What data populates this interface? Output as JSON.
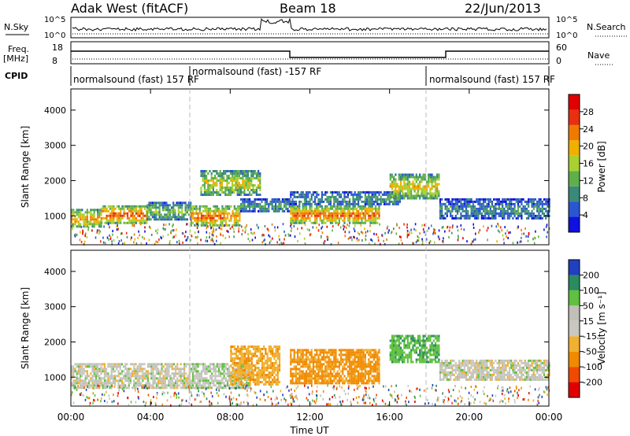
{
  "header": {
    "station": "Adak West (fitACF)",
    "beam": "Beam 18",
    "date": "22/Jun/2013"
  },
  "nsky_panel": {
    "left_label": "N.Sky",
    "right_label": "N.Search",
    "left_ticks": [
      "10^5",
      "10^0"
    ],
    "right_ticks": [
      "10^5",
      "10^0"
    ]
  },
  "freq_panel": {
    "left_label_1": "Freq.",
    "left_label_2": "[MHz]",
    "left_ticks": [
      "18",
      "8"
    ],
    "right_label": "Nave",
    "right_ticks": [
      "60",
      "0"
    ]
  },
  "cpid_panel": {
    "label": "CPID",
    "segments": [
      "normalsound (fast) 157 RF",
      "normalsound (fast) -157 RF",
      "normalsound (fast) 157 RF"
    ]
  },
  "power_panel": {
    "ylabel": "Slant Range [km]",
    "yticks": [
      "4000",
      "3000",
      "2000",
      "1000"
    ],
    "cbar_label": "Power [dB]",
    "cbar_ticks": [
      "28",
      "24",
      "20",
      "16",
      "12",
      "8",
      "4"
    ]
  },
  "velocity_panel": {
    "ylabel": "Slant Range [km]",
    "yticks": [
      "4000",
      "3000",
      "2000",
      "1000"
    ],
    "cbar_label": "Velocity [m s⁻¹]",
    "cbar_ticks": [
      "200",
      "100",
      "50",
      "15",
      "-15",
      "-50",
      "-100",
      "-200"
    ]
  },
  "xaxis": {
    "label": "Time UT",
    "ticks": [
      "00:00",
      "04:00",
      "08:00",
      "12:00",
      "16:00",
      "20:00",
      "00:00"
    ]
  },
  "colors": {
    "power": [
      "#1010e0",
      "#2a56d0",
      "#3a8a7a",
      "#5fb04a",
      "#a8d030",
      "#f0b000",
      "#f07a00",
      "#e83010",
      "#e00000"
    ],
    "velocity": [
      "#e00000",
      "#f04a00",
      "#f08a00",
      "#f0b030",
      "#c8c8c0",
      "#c0c0b8",
      "#60c040",
      "#2a8a60",
      "#2040c0"
    ]
  },
  "chart_data": [
    {
      "type": "heatmap",
      "title": "Power",
      "xlabel": "Time UT",
      "ylabel": "Slant Range [km]",
      "x_range": [
        "00:00",
        "24:00"
      ],
      "ylim": [
        180,
        4600
      ],
      "colorbar": {
        "label": "Power [dB]",
        "range": [
          0,
          32
        ],
        "ticks": [
          4,
          8,
          12,
          16,
          20,
          24,
          28
        ]
      },
      "regions": [
        {
          "t": [
            0.0,
            1.5
          ],
          "range_km": [
            700,
            1200
          ],
          "power_db": 22
        },
        {
          "t": [
            1.5,
            3.8
          ],
          "range_km": [
            800,
            1300
          ],
          "power_db": 26
        },
        {
          "t": [
            3.8,
            6.0
          ],
          "range_km": [
            900,
            1400
          ],
          "power_db": 14
        },
        {
          "t": [
            6.0,
            8.5
          ],
          "range_km": [
            700,
            1300
          ],
          "power_db": 24
        },
        {
          "t": [
            6.5,
            9.5
          ],
          "range_km": [
            1600,
            2300
          ],
          "power_db": 18
        },
        {
          "t": [
            8.5,
            11.0
          ],
          "range_km": [
            1100,
            1500
          ],
          "power_db": 10
        },
        {
          "t": [
            11.0,
            15.5
          ],
          "range_km": [
            800,
            1300
          ],
          "power_db": 25
        },
        {
          "t": [
            11.0,
            16.5
          ],
          "range_km": [
            1300,
            1700
          ],
          "power_db": 10
        },
        {
          "t": [
            16.0,
            18.5
          ],
          "range_km": [
            1500,
            2200
          ],
          "power_db": 20
        },
        {
          "t": [
            18.5,
            24.0
          ],
          "range_km": [
            900,
            1500
          ],
          "power_db": 9
        }
      ]
    },
    {
      "type": "heatmap",
      "title": "Velocity",
      "xlabel": "Time UT",
      "ylabel": "Slant Range [km]",
      "x_range": [
        "00:00",
        "24:00"
      ],
      "ylim": [
        180,
        4600
      ],
      "colorbar": {
        "label": "Velocity [m s⁻¹]",
        "range": [
          -250,
          250
        ],
        "ticks": [
          -200,
          -100,
          -50,
          -15,
          15,
          50,
          100,
          200
        ]
      },
      "regions": [
        {
          "t": [
            0.0,
            6.0
          ],
          "range_km": [
            700,
            1400
          ],
          "velocity": 0
        },
        {
          "t": [
            6.0,
            9.0
          ],
          "range_km": [
            700,
            1400
          ],
          "velocity": 5
        },
        {
          "t": [
            8.0,
            10.5
          ],
          "range_km": [
            800,
            1900
          ],
          "velocity": -40
        },
        {
          "t": [
            11.0,
            15.5
          ],
          "range_km": [
            800,
            1800
          ],
          "velocity": -60
        },
        {
          "t": [
            16.0,
            18.5
          ],
          "range_km": [
            1400,
            2200
          ],
          "velocity": 40
        },
        {
          "t": [
            18.5,
            24.0
          ],
          "range_km": [
            900,
            1500
          ],
          "velocity": 0
        }
      ]
    }
  ]
}
